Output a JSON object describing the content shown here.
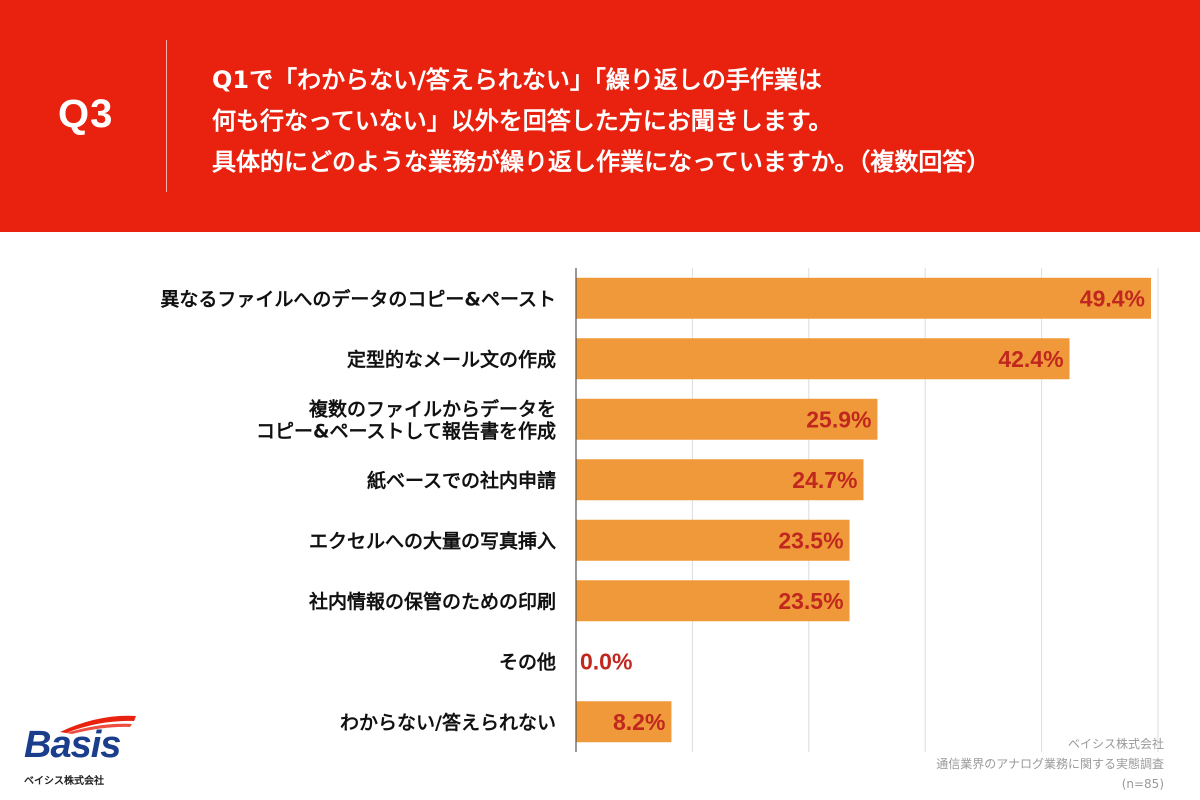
{
  "header": {
    "qnum": "Q3",
    "question_lines": [
      "Q1で「わからない/答えられない」「繰り返しの手作業は",
      "何も行なっていない」以外を回答した方にお聞きします。",
      "具体的にどのような業務が繰り返し作業になっていますか。（複数回答）"
    ]
  },
  "colors": {
    "bar": "#f0993a",
    "value_text": "#c0271e",
    "background": "#e8220f"
  },
  "chart_data": {
    "type": "bar",
    "orientation": "horizontal",
    "categories": [
      "異なるファイルへのデータのコピー&ペースト",
      "定型的なメール文の作成",
      "複数のファイルからデータを\nコピー&ペーストして報告書を作成",
      "紙ベースでの社内申請",
      "エクセルへの大量の写真挿入",
      "社内情報の保管のための印刷",
      "その他",
      "わからない/答えられない"
    ],
    "values": [
      49.4,
      42.4,
      25.9,
      24.7,
      23.5,
      23.5,
      0.0,
      8.2
    ],
    "value_labels": [
      "49.4%",
      "42.4%",
      "25.9%",
      "24.7%",
      "23.5%",
      "23.5%",
      "0.0%",
      "8.2%"
    ],
    "xlim": [
      0,
      50
    ],
    "grid": true
  },
  "source": {
    "company": "ベイシス株式会社",
    "survey": "通信業界のアナログ業務に関する実態調査",
    "n": "(n=85)"
  },
  "logo": {
    "text": "Basis",
    "subtext": "ベイシス株式会社"
  }
}
